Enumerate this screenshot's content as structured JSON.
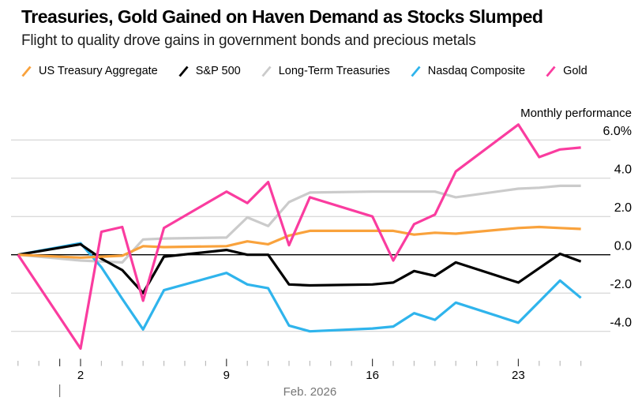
{
  "header": {
    "title": "Treasuries, Gold Gained on Haven Demand as Stocks Slumped",
    "subtitle": "Flight to quality drove gains in government bonds and precious metals"
  },
  "chart_data": {
    "type": "line",
    "title": "Treasuries, Gold Gained on Haven Demand as Stocks Slumped",
    "ylabel": "Monthly performance",
    "xaxis_title": "Feb. 2026",
    "grid": true,
    "legend_position": "top",
    "ylim": [
      -5.2,
      7.0
    ],
    "x": [
      "Jan 30",
      "Feb 2",
      "Feb 3",
      "Feb 4",
      "Feb 5",
      "Feb 6",
      "Feb 9",
      "Feb 10",
      "Feb 11",
      "Feb 12",
      "Feb 13",
      "Feb 16",
      "Feb 17",
      "Feb 18",
      "Feb 19",
      "Feb 20",
      "Feb 23",
      "Feb 24",
      "Feb 25",
      "Feb 26"
    ],
    "x_offsets": [
      -3,
      0,
      1,
      2,
      3,
      4,
      7,
      8,
      9,
      10,
      11,
      14,
      15,
      16,
      17,
      18,
      21,
      22,
      23,
      24
    ],
    "series": [
      {
        "name": "US Treasury Aggregate",
        "color": "#F9A23C",
        "values": [
          0,
          -0.15,
          -0.1,
          -0.05,
          0.45,
          0.4,
          0.45,
          0.7,
          0.55,
          1.0,
          1.25,
          1.25,
          1.25,
          1.05,
          1.15,
          1.1,
          1.4,
          1.45,
          1.4,
          1.35
        ]
      },
      {
        "name": "S&P 500",
        "color": "#000000",
        "values": [
          0,
          0.55,
          -0.2,
          -0.8,
          -2.0,
          -0.1,
          0.25,
          0.0,
          0.0,
          -1.55,
          -1.6,
          -1.55,
          -1.45,
          -0.85,
          -1.1,
          -0.4,
          -1.45,
          -0.7,
          0.05,
          -0.35
        ]
      },
      {
        "name": "Long-Term Treasuries",
        "color": "#CBCBCB",
        "values": [
          0,
          -0.3,
          -0.35,
          -0.4,
          0.8,
          0.85,
          0.9,
          1.95,
          1.5,
          2.75,
          3.25,
          3.3,
          3.3,
          3.3,
          3.3,
          3.0,
          3.45,
          3.5,
          3.6,
          3.6
        ]
      },
      {
        "name": "Nasdaq Composite",
        "color": "#2FB4EC",
        "values": [
          0,
          0.6,
          -0.65,
          -2.3,
          -3.9,
          -1.85,
          -0.95,
          -1.55,
          -1.75,
          -3.7,
          -4.0,
          -3.85,
          -3.75,
          -3.05,
          -3.4,
          -2.5,
          -3.55,
          -2.45,
          -1.35,
          -2.25
        ]
      },
      {
        "name": "Gold",
        "color": "#FA3C9F",
        "values": [
          0,
          -4.9,
          1.2,
          1.45,
          -2.4,
          1.4,
          3.3,
          2.7,
          3.8,
          0.5,
          3.0,
          2.0,
          -0.3,
          1.6,
          2.1,
          4.35,
          6.8,
          5.1,
          5.5,
          5.6
        ]
      }
    ],
    "yticks": [
      {
        "label": "6.0%",
        "value": 6
      },
      {
        "label": "4.0",
        "value": 4
      },
      {
        "label": "2.0",
        "value": 2
      },
      {
        "label": "0.0",
        "value": 0
      },
      {
        "label": "-2.0",
        "value": -2
      },
      {
        "label": "-4.0",
        "value": -4
      }
    ],
    "xtick_labels": [
      {
        "label": "2",
        "offset": 0
      },
      {
        "label": "9",
        "offset": 7
      },
      {
        "label": "16",
        "offset": 14
      },
      {
        "label": "23",
        "offset": 21
      }
    ],
    "month_axis": {
      "label": "Feb. 2026",
      "tick_offset": -1,
      "label_center_offset": 11
    }
  }
}
